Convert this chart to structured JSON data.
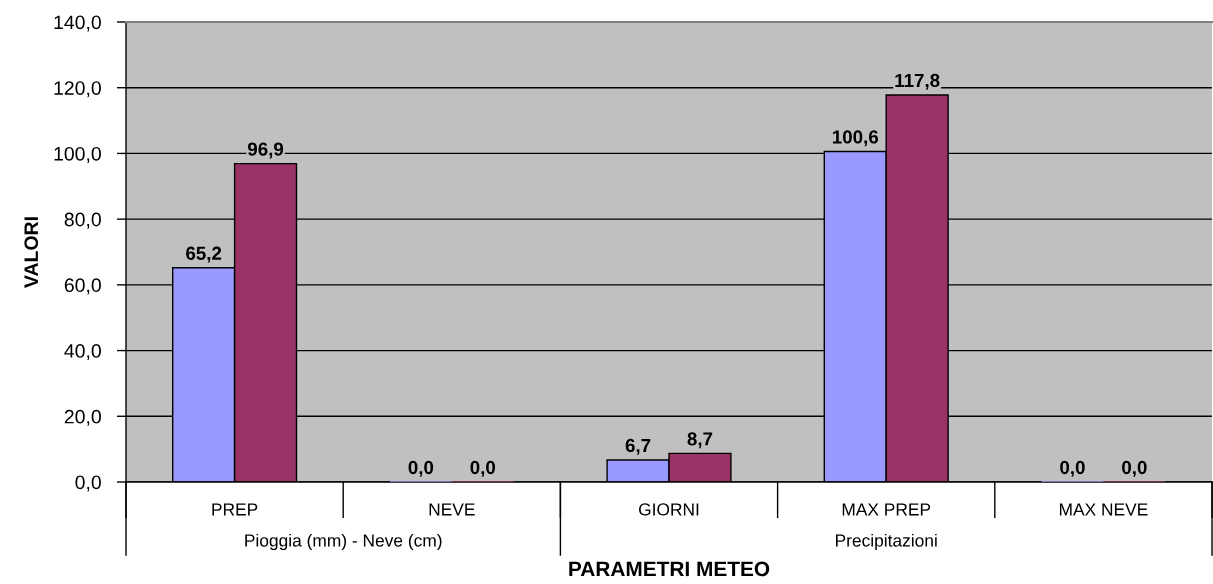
{
  "chart_data": {
    "type": "bar",
    "categories": [
      "PREP",
      "NEVE",
      "GIORNI",
      "MAX PREP",
      "MAX NEVE"
    ],
    "series": [
      {
        "color": "#9999ff",
        "values": [
          65.2,
          0.0,
          6.7,
          100.6,
          0.0
        ],
        "value_labels": [
          "65,2",
          "0,0",
          "6,7",
          "100,6",
          "0,0"
        ]
      },
      {
        "color": "#993366",
        "values": [
          96.9,
          0.0,
          8.7,
          117.8,
          0.0
        ],
        "value_labels": [
          "96,9",
          "0,0",
          "8,7",
          "117,8",
          "0,0"
        ]
      }
    ],
    "ylim": [
      0,
      140
    ],
    "yticks": [
      {
        "value": 0,
        "label": "0,0"
      },
      {
        "value": 20,
        "label": "20,0"
      },
      {
        "value": 40,
        "label": "40,0"
      },
      {
        "value": 60,
        "label": "60,0"
      },
      {
        "value": 80,
        "label": "80,0"
      },
      {
        "value": 100,
        "label": "100,0"
      },
      {
        "value": 120,
        "label": "120,0"
      },
      {
        "value": 140,
        "label": "140,0"
      }
    ],
    "ylabel": "VALORI",
    "xlabel": "PARAMETRI METEO",
    "annotations": [
      "Pioggia (mm) - Neve (cm)",
      "Precipitazioni"
    ],
    "grid": "y"
  }
}
